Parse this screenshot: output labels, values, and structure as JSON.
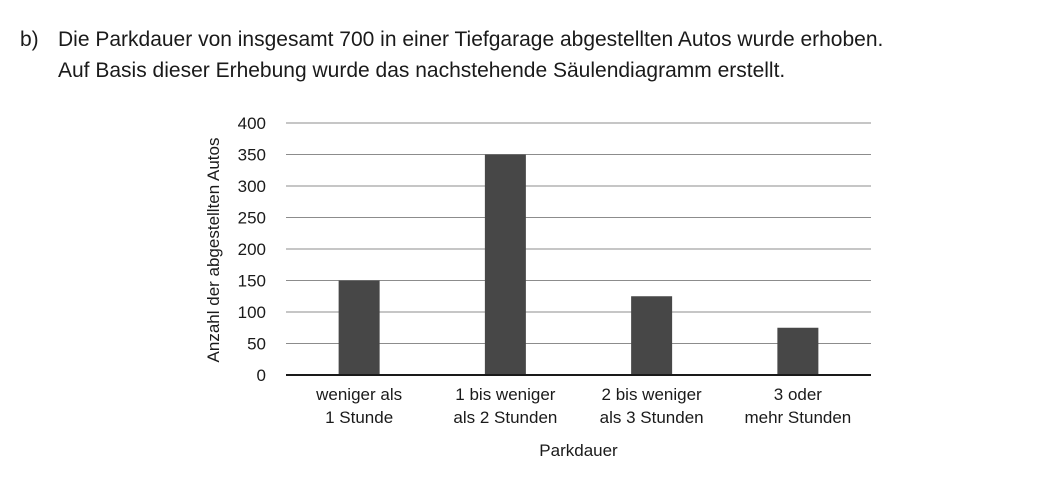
{
  "task": {
    "label": "b)",
    "line1": "Die Parkdauer von insgesamt 700 in einer Tiefgarage abgestellten Autos wurde erhoben.",
    "line2": "Auf Basis dieser Erhebung wurde das nachstehende Säulendiagramm erstellt."
  },
  "chart_data": {
    "type": "bar",
    "categories": [
      [
        "weniger als",
        "1 Stunde"
      ],
      [
        "1 bis weniger",
        "als 2 Stunden"
      ],
      [
        "2 bis weniger",
        "als 3 Stunden"
      ],
      [
        "3 oder",
        "mehr Stunden"
      ]
    ],
    "values": [
      150,
      350,
      125,
      75
    ],
    "title": "",
    "xlabel": "Parkdauer",
    "ylabel": "Anzahl der abgestellten Autos",
    "ylim": [
      0,
      400
    ],
    "yticks": [
      0,
      50,
      100,
      150,
      200,
      250,
      300,
      350,
      400
    ],
    "grid": true,
    "bar_color": "#474747",
    "grid_color": "#8c8c8c",
    "axis_color": "#1a1a1a"
  }
}
